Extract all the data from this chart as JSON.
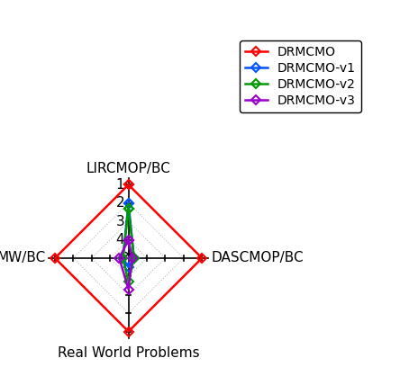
{
  "axes_labels": [
    "LIRCMOP/BC",
    "DASCMOP/BC",
    "Real World Problems",
    "MW/BC"
  ],
  "tick_values": [
    1,
    2,
    3,
    4
  ],
  "scale_max": 5,
  "series": [
    {
      "name": "DRMCMO",
      "color": "#ff0000",
      "values": [
        1.0,
        1.0,
        1.0,
        1.0
      ]
    },
    {
      "name": "DRMCMO-v1",
      "color": "#0055ff",
      "values": [
        2.0,
        4.7,
        4.5,
        4.7
      ]
    },
    {
      "name": "DRMCMO-v2",
      "color": "#009900",
      "values": [
        2.3,
        4.7,
        3.7,
        4.7
      ]
    },
    {
      "name": "DRMCMO-v3",
      "color": "#9900cc",
      "values": [
        4.0,
        4.8,
        3.3,
        4.5
      ]
    }
  ],
  "figsize": [
    4.54,
    4.08
  ],
  "dpi": 100,
  "background_color": "#ffffff",
  "grid_color": "#bbbbbb",
  "axis_color": "#000000",
  "tick_label_fontsize": 11,
  "axis_label_fontsize": 11,
  "legend_fontsize": 10
}
